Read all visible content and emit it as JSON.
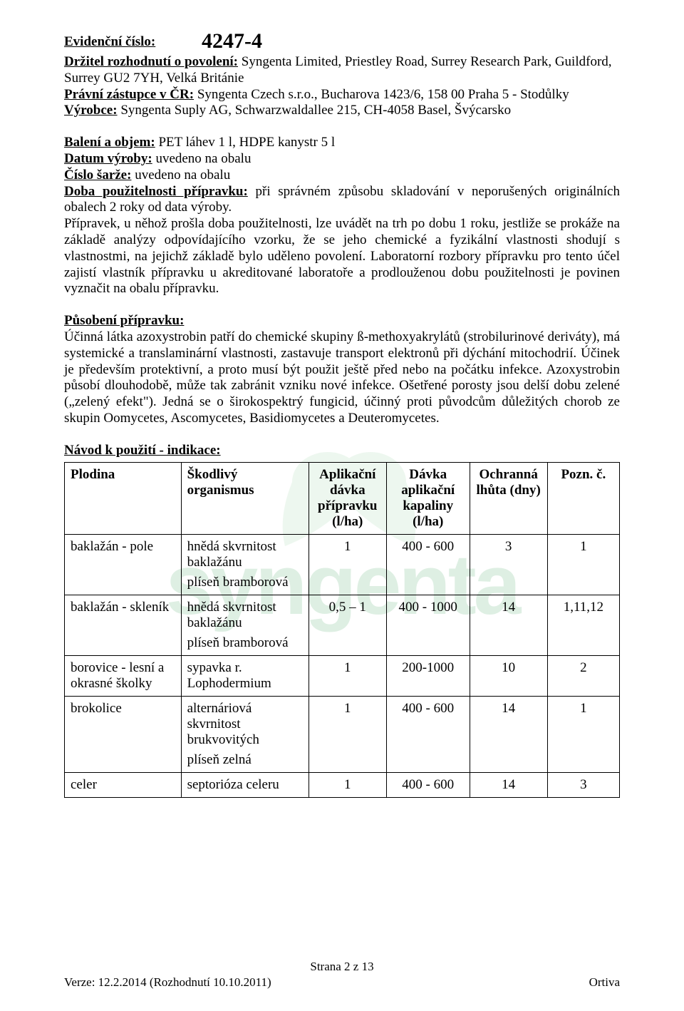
{
  "header": {
    "ev_label": "Evidenční číslo:",
    "ev_value": "4247-4",
    "holder_label": "Držitel rozhodnutí o povolení:",
    "holder_value": " Syngenta Limited, Priestley Road, Surrey Research Park, Guildford, Surrey GU2 7YH, Velká Británie",
    "legal_label": "Právní zástupce v ČR:",
    "legal_value": " Syngenta Czech s.r.o., Bucharova 1423/6, 158 00  Praha 5 - Stodůlky",
    "manuf_label": "Výrobce:",
    "manuf_value": " Syngenta Suply AG, Schwarzwaldallee 215, CH-4058 Basel, Švýcarsko",
    "pack_label": "Balení a objem:",
    "pack_value": " PET láhev 1 l, HDPE kanystr 5 l",
    "date_label": "Datum výroby:",
    "date_value": " uvedeno na obalu",
    "batch_label": "Číslo šarže:",
    "batch_value": " uvedeno na obalu",
    "shelf_label": "Doba použitelnosti přípravku:",
    "shelf_value": " při správném způsobu skladování v neporušených originálních obalech 2 roky od data výroby.",
    "shelf_para": "Přípravek, u něhož prošla doba použitelnosti, lze uvádět na trh po dobu 1 roku, jestliže se prokáže na základě analýzy odpovídajícího vzorku, že se jeho chemické a fyzikální vlastnosti shodují s vlastnostmi, na jejichž základě bylo uděleno povolení. Laboratorní rozbory přípravku pro tento účel zajistí vlastník přípravku u akreditované laboratoře a prodlouženou dobu použitelnosti je povinen vyznačit na obalu přípravku."
  },
  "action": {
    "heading": "Působení přípravku:",
    "text": "Účinná látka azoxystrobin patří do chemické skupiny ß-methoxyakrylátů (strobilurinové deriváty), má systemické a translaminární vlastnosti, zastavuje transport elektronů při dýchání mitochodrií. Účinek je především protektivní, a proto musí být použit ještě před nebo na počátku infekce. Azoxystrobin působí dlouhodobě, může tak zabránit vzniku nové infekce. Ošetřené porosty jsou delší dobu zelené („zelený efekt\"). Jedná se o širokospektrý fungicid, účinný proti původcům důležitých chorob ze skupin Oomycetes, Ascomycetes, Basidiomycetes a Deuteromycetes."
  },
  "table": {
    "heading": "Návod k použití - indikace:",
    "columns": {
      "plodina": "Plodina",
      "organismus": "Škodlivý organismus",
      "davka": "Aplikační dávka přípravku (l/ha)",
      "kapalina": "Dávka aplikační kapaliny (l/ha)",
      "lhuta": "Ochranná lhůta (dny)",
      "pozn": "Pozn. č."
    },
    "rows": [
      {
        "plodina": "baklažán - pole",
        "organismus": "hnědá skvrnitost baklažánu\nplíseň bramborová",
        "davka": "1",
        "kapalina": "400 - 600",
        "lhuta": "3",
        "pozn": "1"
      },
      {
        "plodina": "baklažán - skleník",
        "organismus": "hnědá skvrnitost baklažánu\nplíseň bramborová",
        "davka": "0,5 – 1",
        "kapalina": "400 - 1000",
        "lhuta": "14",
        "pozn": "1,11,12"
      },
      {
        "plodina": "borovice - lesní a okrasné školky",
        "organismus": "sypavka r. Lophodermium",
        "davka": "1",
        "kapalina": "200-1000",
        "lhuta": "10",
        "pozn": "2"
      },
      {
        "plodina": "brokolice",
        "organismus": "alternáriová skvrnitost brukvovitých\nplíseň zelná",
        "davka": "1",
        "kapalina": "400 - 600",
        "lhuta": "14",
        "pozn": "1"
      },
      {
        "plodina": "celer",
        "organismus": "septorióza celeru",
        "davka": "1",
        "kapalina": "400 - 600",
        "lhuta": "14",
        "pozn": "3"
      }
    ]
  },
  "footer": {
    "page": "Strana 2 z 13",
    "version": "Verze: 12.2.2014 (Rozhodnutí 10.10.2011)",
    "product": "Ortiva"
  },
  "style": {
    "watermark_fill": "#d9eedd",
    "watermark_text": "#8cc4a0",
    "font_body": 19,
    "font_ev": 30,
    "font_footer": 17,
    "border_color": "#000000",
    "bg": "#ffffff",
    "text": "#000000"
  }
}
